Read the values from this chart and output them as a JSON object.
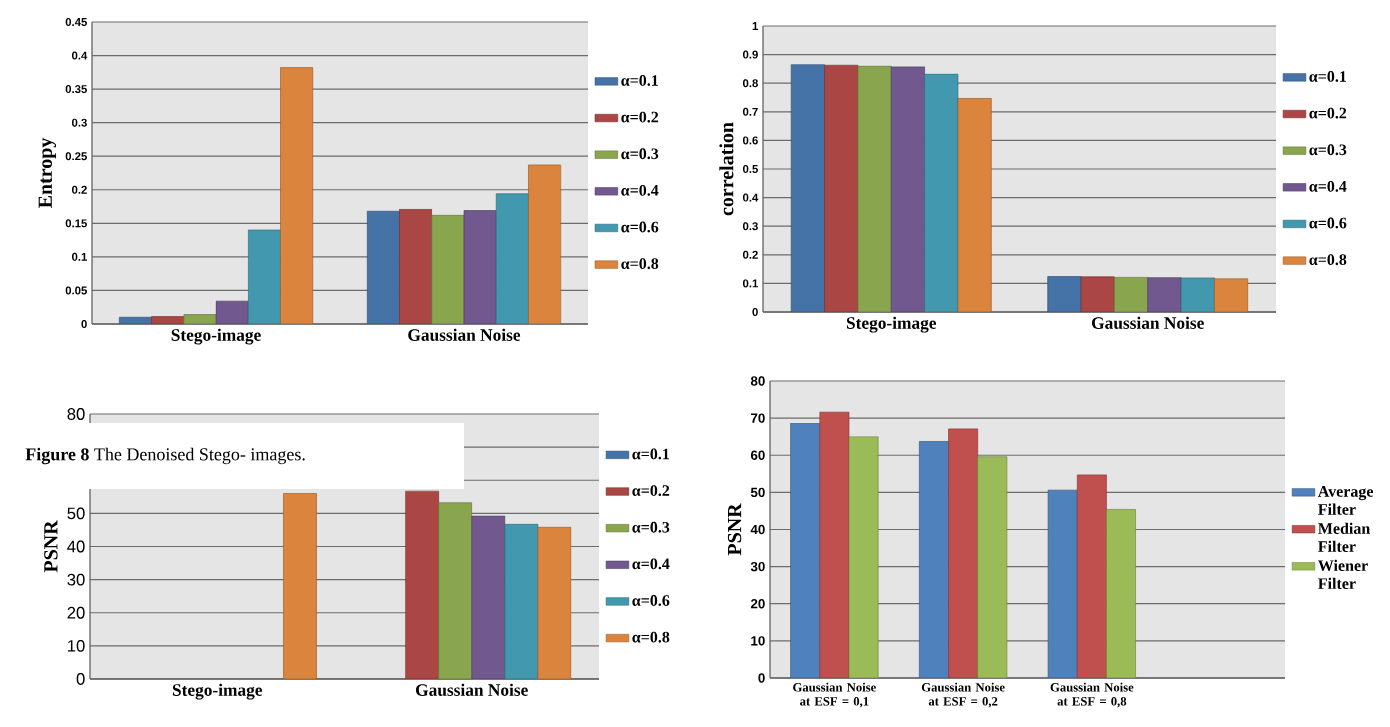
{
  "chart_data": [
    {
      "type": "bar",
      "ylabel": "Entropy",
      "categories": [
        "Stego-image",
        "Gaussian Noise"
      ],
      "ylim": [
        0,
        0.45
      ],
      "yticks": [
        0,
        0.05,
        0.1,
        0.15,
        0.2,
        0.25,
        0.3,
        0.35,
        0.4,
        0.45
      ],
      "grid": "y",
      "legend": "right",
      "series": [
        {
          "name": "α=0.1",
          "color": "#4572a7",
          "values": [
            0.01,
            0.168
          ]
        },
        {
          "name": "α=0.2",
          "color": "#aa4643",
          "values": [
            0.011,
            0.171
          ]
        },
        {
          "name": "α=0.3",
          "color": "#89a54e",
          "values": [
            0.014,
            0.162
          ]
        },
        {
          "name": "α=0.4",
          "color": "#71588f",
          "values": [
            0.034,
            0.169
          ]
        },
        {
          "name": "α=0.6",
          "color": "#4198af",
          "values": [
            0.14,
            0.194
          ]
        },
        {
          "name": "α=0.8",
          "color": "#db843d",
          "values": [
            0.382,
            0.237
          ]
        }
      ]
    },
    {
      "type": "bar",
      "ylabel": "correlation",
      "categories": [
        "Stego-image",
        "Gaussian Noise"
      ],
      "ylim": [
        0,
        1
      ],
      "yticks": [
        0,
        0.1,
        0.2,
        0.3,
        0.4,
        0.5,
        0.6,
        0.7,
        0.8,
        0.9,
        1
      ],
      "grid": "y",
      "legend": "right",
      "series": [
        {
          "name": "α=0.1",
          "color": "#4572a7",
          "values": [
            0.865,
            0.124
          ]
        },
        {
          "name": "α=0.2",
          "color": "#aa4643",
          "values": [
            0.863,
            0.123
          ]
        },
        {
          "name": "α=0.3",
          "color": "#89a54e",
          "values": [
            0.86,
            0.121
          ]
        },
        {
          "name": "α=0.4",
          "color": "#71588f",
          "values": [
            0.857,
            0.12
          ]
        },
        {
          "name": "α=0.6",
          "color": "#4198af",
          "values": [
            0.832,
            0.119
          ]
        },
        {
          "name": "α=0.8",
          "color": "#db843d",
          "values": [
            0.747,
            0.116
          ]
        }
      ]
    },
    {
      "type": "bar",
      "ylabel": "PSNR",
      "categories": [
        "Stego-image",
        "Gaussian Noise"
      ],
      "ylim": [
        0,
        80
      ],
      "yticks": [
        0,
        10,
        20,
        30,
        40,
        50,
        {
          "value": 60,
          "label": null
        },
        {
          "value": 70,
          "label": null
        },
        80
      ],
      "grid": "y",
      "legend": "right",
      "annotations": [
        "**Figure 8** The Denoised Stego- images."
      ],
      "series": [
        {
          "name": "α=0.1",
          "color": "#4572a7",
          "values": [
            null,
            null
          ]
        },
        {
          "name": "α=0.2",
          "color": "#aa4643",
          "values": [
            null,
            56.7
          ]
        },
        {
          "name": "α=0.3",
          "color": "#89a54e",
          "values": [
            null,
            53.2
          ]
        },
        {
          "name": "α=0.4",
          "color": "#71588f",
          "values": [
            null,
            49.2
          ]
        },
        {
          "name": "α=0.6",
          "color": "#4198af",
          "values": [
            null,
            46.7
          ]
        },
        {
          "name": "α=0.8",
          "color": "#db843d",
          "values": [
            56,
            45.8
          ]
        }
      ]
    },
    {
      "type": "bar",
      "ylabel": "PSNR",
      "categories": [
        "Gaussian Noise at ESF = 0,1",
        "Gaussian Noise at ESF = 0,2",
        "Gaussian Noise at ESF = 0,8",
        null
      ],
      "ylim": [
        0,
        80
      ],
      "yticks": [
        0,
        10,
        20,
        30,
        40,
        50,
        60,
        70,
        80
      ],
      "grid": "y",
      "legend": "right",
      "series": [
        {
          "name": "Average Filter",
          "color": "#4f81bd",
          "values": [
            68.6,
            63.7,
            50.6,
            null
          ]
        },
        {
          "name": "Median Filter",
          "color": "#c0504d",
          "values": [
            71.6,
            67.1,
            54.7,
            null
          ]
        },
        {
          "name": "Wiener Filter",
          "color": "#9bbb59",
          "values": [
            65,
            59.6,
            45.4,
            null
          ]
        }
      ]
    }
  ]
}
